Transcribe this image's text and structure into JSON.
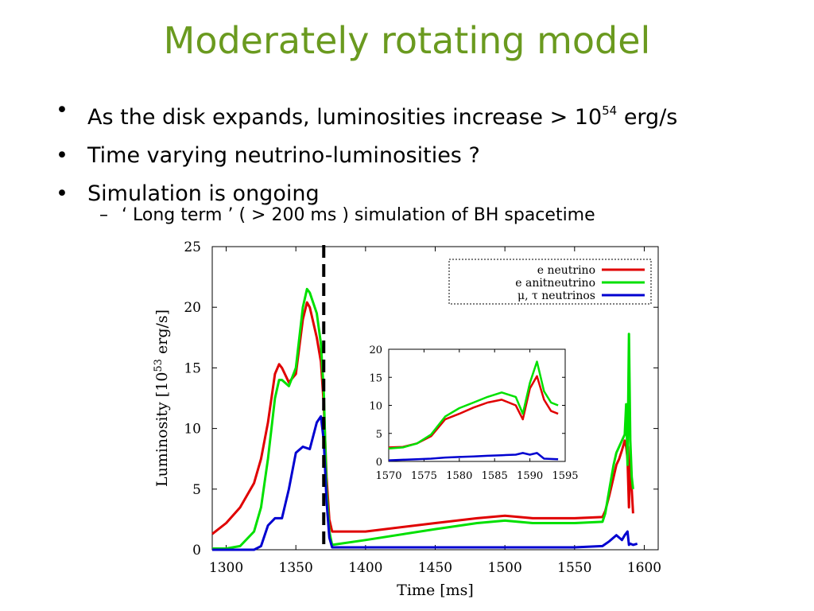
{
  "slide": {
    "title": "Moderately rotating model",
    "bullets": [
      {
        "marker": "•",
        "text": "As the disk expands, luminosities increase > 10",
        "sup": "54",
        "tail": " erg/s"
      },
      {
        "marker": "•",
        "text": "Time varying neutrino-luminosities ?"
      },
      {
        "marker": "•",
        "text": "Simulation is ongoing"
      }
    ],
    "sub_bullet": {
      "marker": "–",
      "text": "‘ Long term ’ ( > 200 ms ) simulation of BH spacetime"
    }
  },
  "chart_data": [
    {
      "type": "line",
      "xlabel": "Time [ms]",
      "ylabel_main": "Luminosity [10",
      "ylabel_sup": "53",
      "ylabel_tail": " erg/s]",
      "xlim": [
        1290,
        1610
      ],
      "ylim": [
        0,
        25
      ],
      "xticks": [
        1300,
        1350,
        1400,
        1450,
        1500,
        1550,
        1600
      ],
      "yticks": [
        0,
        5,
        10,
        15,
        20,
        25
      ],
      "grid": false,
      "legend_position": "top-right",
      "vline_x": 1370,
      "series": [
        {
          "name": "e neutrino",
          "color": "#e00000",
          "x": [
            1290,
            1300,
            1310,
            1320,
            1325,
            1330,
            1335,
            1338,
            1340,
            1345,
            1350,
            1355,
            1358,
            1360,
            1365,
            1368,
            1370,
            1372,
            1374,
            1376,
            1400,
            1450,
            1480,
            1500,
            1520,
            1550,
            1570,
            1572,
            1575,
            1578,
            1580,
            1582,
            1584,
            1586,
            1587,
            1588,
            1589,
            1590,
            1591,
            1592
          ],
          "y": [
            1.3,
            2.2,
            3.5,
            5.5,
            7.5,
            10.5,
            14.5,
            15.3,
            15.0,
            13.8,
            14.5,
            19,
            20.4,
            20.0,
            17.5,
            15.5,
            12,
            6,
            2.5,
            1.5,
            1.5,
            2.2,
            2.6,
            2.8,
            2.6,
            2.6,
            2.7,
            3.2,
            4.5,
            6,
            7,
            7.5,
            8.2,
            9,
            8.5,
            7.5,
            3.5,
            8.5,
            5,
            3
          ]
        },
        {
          "name": "e anitneutrino",
          "color": "#00e000",
          "x": [
            1290,
            1300,
            1310,
            1320,
            1325,
            1330,
            1335,
            1338,
            1340,
            1345,
            1350,
            1355,
            1358,
            1360,
            1365,
            1368,
            1370,
            1372,
            1374,
            1376,
            1400,
            1450,
            1480,
            1500,
            1520,
            1550,
            1570,
            1572,
            1575,
            1578,
            1580,
            1582,
            1584,
            1586,
            1587,
            1588,
            1589,
            1590,
            1591,
            1592
          ],
          "y": [
            0.1,
            0.1,
            0.3,
            1.5,
            3.5,
            7.5,
            12.5,
            14.0,
            14.0,
            13.5,
            15,
            20,
            21.5,
            21.2,
            19.5,
            17,
            13,
            5,
            1.5,
            0.4,
            0.8,
            1.7,
            2.2,
            2.4,
            2.2,
            2.2,
            2.3,
            3,
            5,
            7,
            8,
            8.5,
            9,
            9.5,
            12,
            7,
            17.8,
            9,
            6,
            5
          ]
        },
        {
          "name": "μ, τ neutrinos",
          "color": "#0000d0",
          "x": [
            1290,
            1310,
            1320,
            1325,
            1330,
            1335,
            1340,
            1345,
            1350,
            1355,
            1360,
            1365,
            1368,
            1370,
            1372,
            1374,
            1376,
            1400,
            1450,
            1500,
            1550,
            1570,
            1575,
            1580,
            1584,
            1586,
            1588,
            1589,
            1590,
            1592,
            1595
          ],
          "y": [
            0,
            0,
            0,
            0.3,
            2,
            2.6,
            2.6,
            5,
            8,
            8.5,
            8.3,
            10.5,
            11,
            9,
            4,
            1,
            0.2,
            0.2,
            0.2,
            0.2,
            0.2,
            0.3,
            0.7,
            1.2,
            0.8,
            1.2,
            1.5,
            0.4,
            0.5,
            0.4,
            0.5
          ]
        }
      ]
    },
    {
      "type": "line",
      "role": "inset",
      "xlim": [
        1570,
        1595
      ],
      "ylim": [
        0,
        20
      ],
      "xticks": [
        1570,
        1575,
        1580,
        1585,
        1590,
        1595
      ],
      "yticks": [
        0,
        5,
        10,
        15,
        20
      ],
      "series": [
        {
          "color": "#e00000",
          "x": [
            1570,
            1572,
            1574,
            1576,
            1578,
            1580,
            1582,
            1584,
            1586,
            1588,
            1589,
            1590,
            1591,
            1592,
            1593,
            1594
          ],
          "y": [
            2.5,
            2.6,
            3.2,
            4.5,
            7.5,
            8.5,
            9.6,
            10.5,
            11,
            10,
            7.5,
            13,
            15.2,
            11,
            9,
            8.5
          ]
        },
        {
          "color": "#00e000",
          "x": [
            1570,
            1572,
            1574,
            1576,
            1578,
            1580,
            1582,
            1584,
            1586,
            1588,
            1589,
            1590,
            1591,
            1592,
            1593,
            1594
          ],
          "y": [
            2.3,
            2.5,
            3.2,
            4.8,
            8,
            9.5,
            10.5,
            11.5,
            12.3,
            11.5,
            8.5,
            14,
            17.8,
            12.5,
            10.5,
            10
          ]
        },
        {
          "color": "#0000d0",
          "x": [
            1570,
            1572,
            1574,
            1576,
            1578,
            1580,
            1582,
            1584,
            1586,
            1588,
            1589,
            1590,
            1591,
            1592,
            1594
          ],
          "y": [
            0.2,
            0.3,
            0.4,
            0.5,
            0.7,
            0.8,
            0.9,
            1.0,
            1.1,
            1.2,
            1.5,
            1.2,
            1.5,
            0.5,
            0.4
          ]
        }
      ]
    }
  ]
}
